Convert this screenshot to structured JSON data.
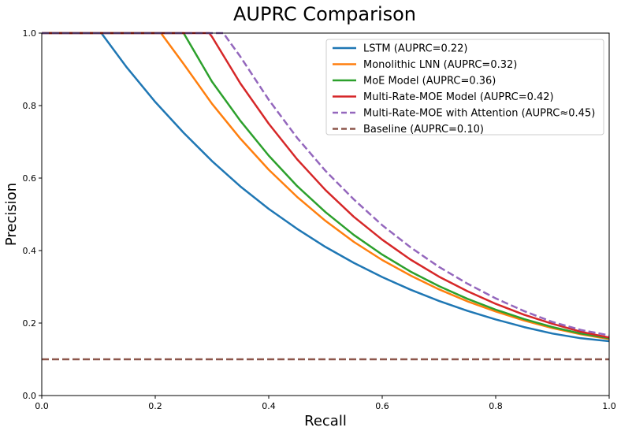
{
  "chart_data": {
    "type": "line",
    "title": "AUPRC Comparison",
    "xlabel": "Recall",
    "ylabel": "Precision",
    "xlim": [
      0.0,
      1.0
    ],
    "ylim": [
      0.0,
      1.0
    ],
    "xticks": [
      "0.0",
      "0.2",
      "0.4",
      "0.6",
      "0.8",
      "1.0"
    ],
    "yticks": [
      "0.0",
      "0.2",
      "0.4",
      "0.6",
      "0.8",
      "1.0"
    ],
    "grid": false,
    "legend_position": "top-right",
    "series": [
      {
        "name": "LSTM (AUPRC=0.22)",
        "color": "#1f77b4",
        "style": "solid",
        "x": [
          0.0,
          0.1,
          0.105,
          0.15,
          0.2,
          0.25,
          0.3,
          0.35,
          0.4,
          0.45,
          0.5,
          0.55,
          0.6,
          0.65,
          0.7,
          0.75,
          0.8,
          0.85,
          0.9,
          0.95,
          1.0
        ],
        "y": [
          1.0,
          1.0,
          1.0,
          0.905,
          0.81,
          0.725,
          0.647,
          0.577,
          0.515,
          0.46,
          0.41,
          0.366,
          0.327,
          0.292,
          0.261,
          0.234,
          0.21,
          0.189,
          0.171,
          0.158,
          0.15
        ]
      },
      {
        "name": "Monolithic LNN (AUPRC=0.32)",
        "color": "#ff7f0e",
        "style": "solid",
        "x": [
          0.0,
          0.2,
          0.21,
          0.25,
          0.3,
          0.35,
          0.4,
          0.45,
          0.5,
          0.55,
          0.6,
          0.65,
          0.7,
          0.75,
          0.8,
          0.85,
          0.9,
          0.95,
          1.0
        ],
        "y": [
          1.0,
          1.0,
          1.0,
          0.915,
          0.805,
          0.709,
          0.623,
          0.548,
          0.482,
          0.424,
          0.374,
          0.331,
          0.293,
          0.26,
          0.232,
          0.207,
          0.186,
          0.169,
          0.156
        ]
      },
      {
        "name": "MoE Model (AUPRC=0.36)",
        "color": "#2ca02c",
        "style": "solid",
        "x": [
          0.0,
          0.24,
          0.25,
          0.3,
          0.35,
          0.4,
          0.45,
          0.5,
          0.55,
          0.6,
          0.65,
          0.7,
          0.75,
          0.8,
          0.85,
          0.9,
          0.95,
          1.0
        ],
        "y": [
          1.0,
          1.0,
          1.0,
          0.866,
          0.758,
          0.662,
          0.578,
          0.506,
          0.443,
          0.389,
          0.342,
          0.302,
          0.267,
          0.237,
          0.211,
          0.189,
          0.171,
          0.158
        ]
      },
      {
        "name": "Multi-Rate-MOE Model (AUPRC=0.42)",
        "color": "#d62728",
        "style": "solid",
        "x": [
          0.0,
          0.28,
          0.295,
          0.3,
          0.35,
          0.4,
          0.45,
          0.5,
          0.55,
          0.6,
          0.65,
          0.7,
          0.75,
          0.8,
          0.85,
          0.9,
          0.95,
          1.0
        ],
        "y": [
          1.0,
          1.0,
          1.0,
          0.99,
          0.861,
          0.75,
          0.652,
          0.567,
          0.493,
          0.43,
          0.375,
          0.328,
          0.288,
          0.253,
          0.223,
          0.198,
          0.176,
          0.16
        ]
      },
      {
        "name": "Multi-Rate-MOE with Attention (AUPRC≈0.45)",
        "color": "#9467bd",
        "style": "dashed",
        "x": [
          0.0,
          0.31,
          0.32,
          0.35,
          0.4,
          0.45,
          0.5,
          0.55,
          0.6,
          0.65,
          0.7,
          0.75,
          0.8,
          0.85,
          0.9,
          0.95,
          1.0
        ],
        "y": [
          1.0,
          1.0,
          1.0,
          0.935,
          0.816,
          0.711,
          0.62,
          0.541,
          0.47,
          0.409,
          0.355,
          0.309,
          0.268,
          0.233,
          0.203,
          0.181,
          0.166
        ]
      },
      {
        "name": "Baseline (AUPRC=0.10)",
        "color": "#8c564b",
        "style": "dashed",
        "x": [
          0.0,
          1.0
        ],
        "y": [
          0.1,
          0.1
        ]
      }
    ]
  }
}
